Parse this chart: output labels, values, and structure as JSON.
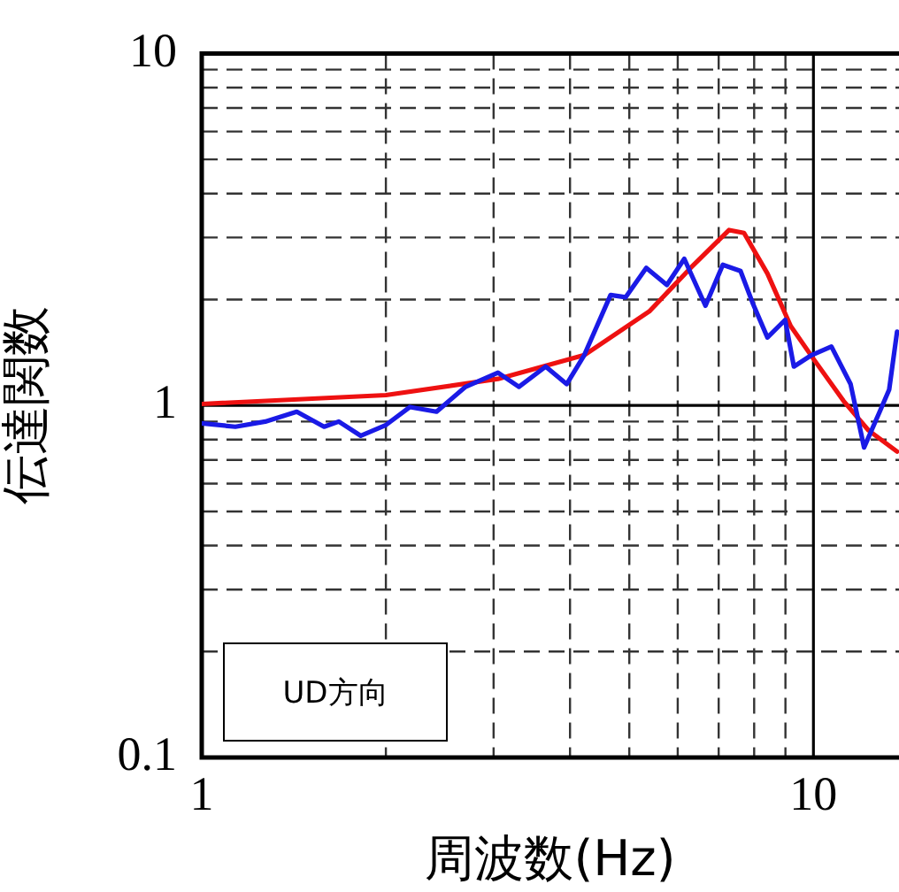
{
  "chart_data": {
    "type": "line",
    "xlabel": "周波数(Hz)",
    "ylabel": "伝達関数",
    "log": "xy",
    "grid": true,
    "legend": false,
    "marker": "none",
    "line_style": "solid",
    "xlim": [
      1,
      13.8
    ],
    "ylim": [
      0.1,
      10
    ],
    "xticks": [
      1,
      {
        "value": 2,
        "label": null
      },
      {
        "value": 3,
        "label": null
      },
      {
        "value": 4,
        "label": null
      },
      {
        "value": 5,
        "label": null
      },
      {
        "value": 6,
        "label": null
      },
      {
        "value": 7,
        "label": null
      },
      {
        "value": 8,
        "label": null
      },
      {
        "value": 9,
        "label": null
      },
      10
    ],
    "yticks": [
      0.1,
      {
        "value": 0.2,
        "label": null
      },
      {
        "value": 0.3,
        "label": null
      },
      {
        "value": 0.4,
        "label": null
      },
      {
        "value": 0.5,
        "label": null
      },
      {
        "value": 0.6,
        "label": null
      },
      {
        "value": 0.7,
        "label": null
      },
      {
        "value": 0.8,
        "label": null
      },
      {
        "value": 0.9,
        "label": null
      },
      1,
      {
        "value": 2,
        "label": null
      },
      {
        "value": 3,
        "label": null
      },
      {
        "value": 4,
        "label": null
      },
      {
        "value": 5,
        "label": null
      },
      {
        "value": 6,
        "label": null
      },
      {
        "value": 7,
        "label": null
      },
      {
        "value": 8,
        "label": null
      },
      {
        "value": 9,
        "label": null
      },
      10
    ],
    "annotations": [
      "UD方向"
    ],
    "series": [
      {
        "color": "#1a1ae6",
        "x": [
          1,
          1.135,
          1.27,
          1.43,
          1.585,
          1.675,
          1.82,
          2.0,
          2.19,
          2.42,
          2.7,
          3.05,
          3.3,
          3.65,
          3.95,
          4.22,
          4.66,
          4.93,
          5.33,
          5.76,
          6.15,
          6.66,
          7.11,
          7.6,
          7.95,
          8.41,
          8.99,
          9.29,
          9.93,
          10.7,
          11.5,
          12.1,
          12.8,
          13.3,
          13.7
        ],
        "values": [
          0.89,
          0.87,
          0.9,
          0.96,
          0.87,
          0.9,
          0.82,
          0.88,
          0.99,
          0.96,
          1.13,
          1.24,
          1.13,
          1.29,
          1.15,
          1.39,
          2.06,
          2.03,
          2.46,
          2.2,
          2.61,
          1.92,
          2.51,
          2.41,
          1.96,
          1.56,
          1.75,
          1.29,
          1.39,
          1.47,
          1.15,
          0.76,
          0.95,
          1.11,
          1.62
        ]
      },
      {
        "color": "#ee1111",
        "x": [
          1,
          2,
          3.05,
          4.22,
          5.39,
          6.3,
          7.28,
          7.7,
          8.41,
          9.18,
          10.05,
          11.2,
          12.3,
          13.7
        ],
        "values": [
          1.01,
          1.07,
          1.19,
          1.39,
          1.85,
          2.46,
          3.15,
          3.09,
          2.37,
          1.68,
          1.34,
          1.03,
          0.85,
          0.74
        ]
      }
    ]
  }
}
